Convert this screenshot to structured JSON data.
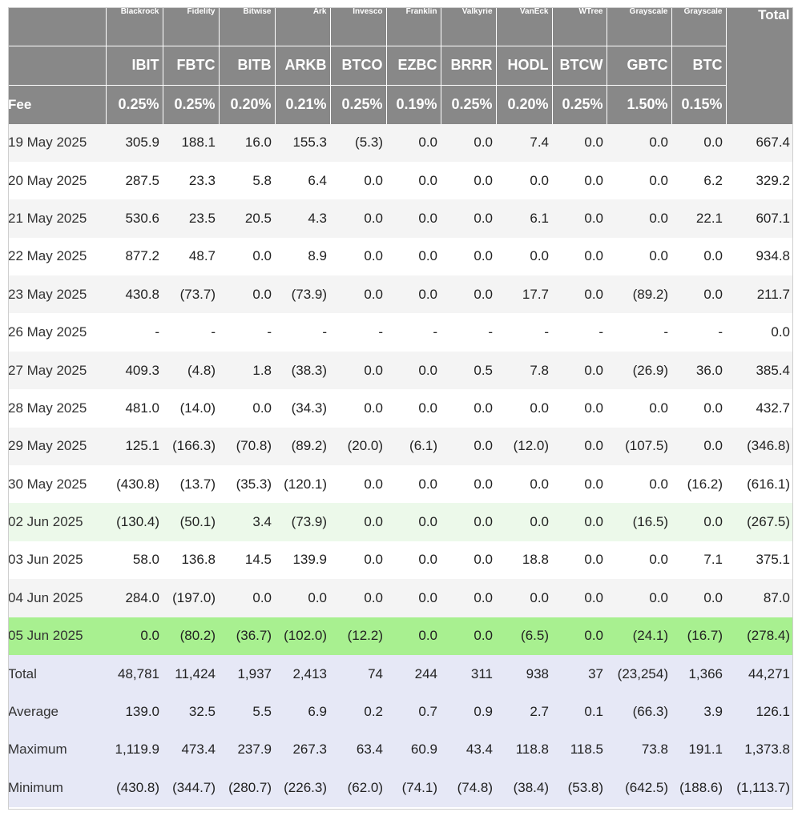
{
  "header": {
    "issuers": [
      "Blackrock",
      "Fidelity",
      "Bitwise",
      "Ark",
      "Invesco",
      "Franklin",
      "Valkyrie",
      "VanEck",
      "WTree",
      "Grayscale",
      "Grayscale"
    ],
    "total_label": "Total",
    "tickers": [
      "IBIT",
      "FBTC",
      "BITB",
      "ARKB",
      "BTCO",
      "EZBC",
      "BRRR",
      "HODL",
      "BTCW",
      "GBTC",
      "BTC"
    ],
    "fee_label": "Fee",
    "fees": [
      "0.25%",
      "0.25%",
      "0.20%",
      "0.21%",
      "0.25%",
      "0.19%",
      "0.25%",
      "0.20%",
      "0.25%",
      "1.50%",
      "0.15%"
    ]
  },
  "rows": [
    {
      "date": "19 May 2025",
      "values": [
        "305.9",
        "188.1",
        "16.0",
        "155.3",
        "(5.3)",
        "0.0",
        "0.0",
        "7.4",
        "0.0",
        "0.0",
        "0.0"
      ],
      "total": "667.4",
      "highlight": "none"
    },
    {
      "date": "20 May 2025",
      "values": [
        "287.5",
        "23.3",
        "5.8",
        "6.4",
        "0.0",
        "0.0",
        "0.0",
        "0.0",
        "0.0",
        "0.0",
        "6.2"
      ],
      "total": "329.2",
      "highlight": "none"
    },
    {
      "date": "21 May 2025",
      "values": [
        "530.6",
        "23.5",
        "20.5",
        "4.3",
        "0.0",
        "0.0",
        "0.0",
        "6.1",
        "0.0",
        "0.0",
        "22.1"
      ],
      "total": "607.1",
      "highlight": "none"
    },
    {
      "date": "22 May 2025",
      "values": [
        "877.2",
        "48.7",
        "0.0",
        "8.9",
        "0.0",
        "0.0",
        "0.0",
        "0.0",
        "0.0",
        "0.0",
        "0.0"
      ],
      "total": "934.8",
      "highlight": "none"
    },
    {
      "date": "23 May 2025",
      "values": [
        "430.8",
        "(73.7)",
        "0.0",
        "(73.9)",
        "0.0",
        "0.0",
        "0.0",
        "17.7",
        "0.0",
        "(89.2)",
        "0.0"
      ],
      "total": "211.7",
      "highlight": "none"
    },
    {
      "date": "26 May 2025",
      "values": [
        "-",
        "-",
        "-",
        "-",
        "-",
        "-",
        "-",
        "-",
        "-",
        "-",
        "-"
      ],
      "total": "0.0",
      "highlight": "none"
    },
    {
      "date": "27 May 2025",
      "values": [
        "409.3",
        "(4.8)",
        "1.8",
        "(38.3)",
        "0.0",
        "0.0",
        "0.5",
        "7.8",
        "0.0",
        "(26.9)",
        "36.0"
      ],
      "total": "385.4",
      "highlight": "none"
    },
    {
      "date": "28 May 2025",
      "values": [
        "481.0",
        "(14.0)",
        "0.0",
        "(34.3)",
        "0.0",
        "0.0",
        "0.0",
        "0.0",
        "0.0",
        "0.0",
        "0.0"
      ],
      "total": "432.7",
      "highlight": "none"
    },
    {
      "date": "29 May 2025",
      "values": [
        "125.1",
        "(166.3)",
        "(70.8)",
        "(89.2)",
        "(20.0)",
        "(6.1)",
        "0.0",
        "(12.0)",
        "0.0",
        "(107.5)",
        "0.0"
      ],
      "total": "(346.8)",
      "highlight": "none"
    },
    {
      "date": "30 May 2025",
      "values": [
        "(430.8)",
        "(13.7)",
        "(35.3)",
        "(120.1)",
        "0.0",
        "0.0",
        "0.0",
        "0.0",
        "0.0",
        "0.0",
        "(16.2)"
      ],
      "total": "(616.1)",
      "highlight": "none"
    },
    {
      "date": "02 Jun 2025",
      "values": [
        "(130.4)",
        "(50.1)",
        "3.4",
        "(73.9)",
        "0.0",
        "0.0",
        "0.0",
        "0.0",
        "0.0",
        "(16.5)",
        "0.0"
      ],
      "total": "(267.5)",
      "highlight": "light-green"
    },
    {
      "date": "03 Jun 2025",
      "values": [
        "58.0",
        "136.8",
        "14.5",
        "139.9",
        "0.0",
        "0.0",
        "0.0",
        "18.8",
        "0.0",
        "0.0",
        "7.1"
      ],
      "total": "375.1",
      "highlight": "none"
    },
    {
      "date": "04 Jun 2025",
      "values": [
        "284.0",
        "(197.0)",
        "0.0",
        "0.0",
        "0.0",
        "0.0",
        "0.0",
        "0.0",
        "0.0",
        "0.0",
        "0.0"
      ],
      "total": "87.0",
      "highlight": "none"
    },
    {
      "date": "05 Jun 2025",
      "values": [
        "0.0",
        "(80.2)",
        "(36.7)",
        "(102.0)",
        "(12.2)",
        "0.0",
        "0.0",
        "(6.5)",
        "0.0",
        "(24.1)",
        "(16.7)"
      ],
      "total": "(278.4)",
      "highlight": "bright-green"
    }
  ],
  "summary": [
    {
      "label": "Total",
      "values": [
        "48,781",
        "11,424",
        "1,937",
        "2,413",
        "74",
        "244",
        "311",
        "938",
        "37",
        "(23,254)",
        "1,366"
      ],
      "total": "44,271"
    },
    {
      "label": "Average",
      "values": [
        "139.0",
        "32.5",
        "5.5",
        "6.9",
        "0.2",
        "0.7",
        "0.9",
        "2.7",
        "0.1",
        "(66.3)",
        "3.9"
      ],
      "total": "126.1"
    },
    {
      "label": "Maximum",
      "values": [
        "1,119.9",
        "473.4",
        "237.9",
        "267.3",
        "63.4",
        "60.9",
        "43.4",
        "118.8",
        "118.5",
        "73.8",
        "191.1"
      ],
      "total": "1,373.8"
    },
    {
      "label": "Minimum",
      "values": [
        "(430.8)",
        "(344.7)",
        "(280.7)",
        "(226.3)",
        "(62.0)",
        "(74.1)",
        "(74.8)",
        "(38.4)",
        "(53.8)",
        "(642.5)",
        "(188.6)"
      ],
      "total": "(1,113.7)"
    }
  ],
  "colors": {
    "header_bg": "#888888",
    "negative": "#e8443c",
    "row_light_green": "#ecf9ea",
    "row_bright_green": "#a8f090",
    "summary_bg": "#e6e8f6"
  }
}
